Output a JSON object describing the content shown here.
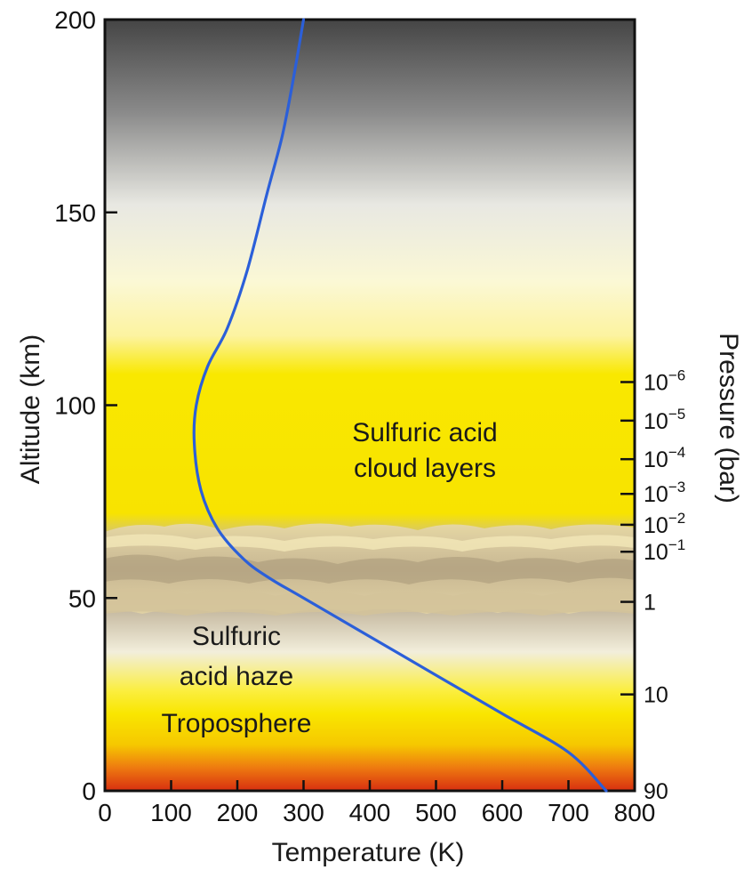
{
  "chart_data": {
    "type": "line",
    "xlabel": "Temperature (K)",
    "ylabel": "Altitude (km)",
    "y2label": "Pressure (bar)",
    "xlim": [
      0,
      800
    ],
    "ylim": [
      0,
      200
    ],
    "x_ticks": [
      "0",
      "100",
      "200",
      "300",
      "400",
      "500",
      "600",
      "700",
      "800"
    ],
    "x_tick_values": [
      0,
      100,
      200,
      300,
      400,
      500,
      600,
      700,
      800
    ],
    "y_ticks": [
      "0",
      "50",
      "100",
      "150",
      "200"
    ],
    "y_tick_values": [
      0,
      50,
      100,
      150,
      200
    ],
    "pressure_ticks": [
      {
        "mantissa": "90",
        "exp": "",
        "altitude": 0
      },
      {
        "mantissa": "10",
        "exp": "",
        "altitude": 25
      },
      {
        "mantissa": "1",
        "exp": "",
        "altitude": 49
      },
      {
        "mantissa": "10",
        "exp": "−1",
        "altitude": 62
      },
      {
        "mantissa": "10",
        "exp": "−2",
        "altitude": 69
      },
      {
        "mantissa": "10",
        "exp": "−3",
        "altitude": 77
      },
      {
        "mantissa": "10",
        "exp": "−4",
        "altitude": 86
      },
      {
        "mantissa": "10",
        "exp": "−5",
        "altitude": 96
      },
      {
        "mantissa": "10",
        "exp": "−6",
        "altitude": 106
      }
    ],
    "series": [
      {
        "color": "#2b5fd9",
        "x": [
          757,
          700,
          600,
          500,
          400,
          300,
          250,
          210,
          170,
          145,
          135,
          138,
          155,
          185,
          215,
          245,
          268,
          285,
          300
        ],
        "y": [
          0,
          10,
          20,
          30,
          40,
          50,
          55,
          60,
          68,
          78,
          90,
          100,
          110,
          120,
          135,
          155,
          170,
          185,
          200
        ]
      }
    ],
    "annotations": {
      "cloud_line1": "Sulfuric acid",
      "cloud_line2": "cloud layers",
      "haze_line1": "Sulfuric",
      "haze_line2": "acid haze",
      "troposphere": "Troposphere"
    },
    "colors": {
      "top_gray": "#454545",
      "yellow": "#f9e600",
      "surface_red": "#e83a10",
      "haze_tan": "#b9a98f",
      "cloud_tan": "#d8c79a"
    },
    "grid": false
  }
}
